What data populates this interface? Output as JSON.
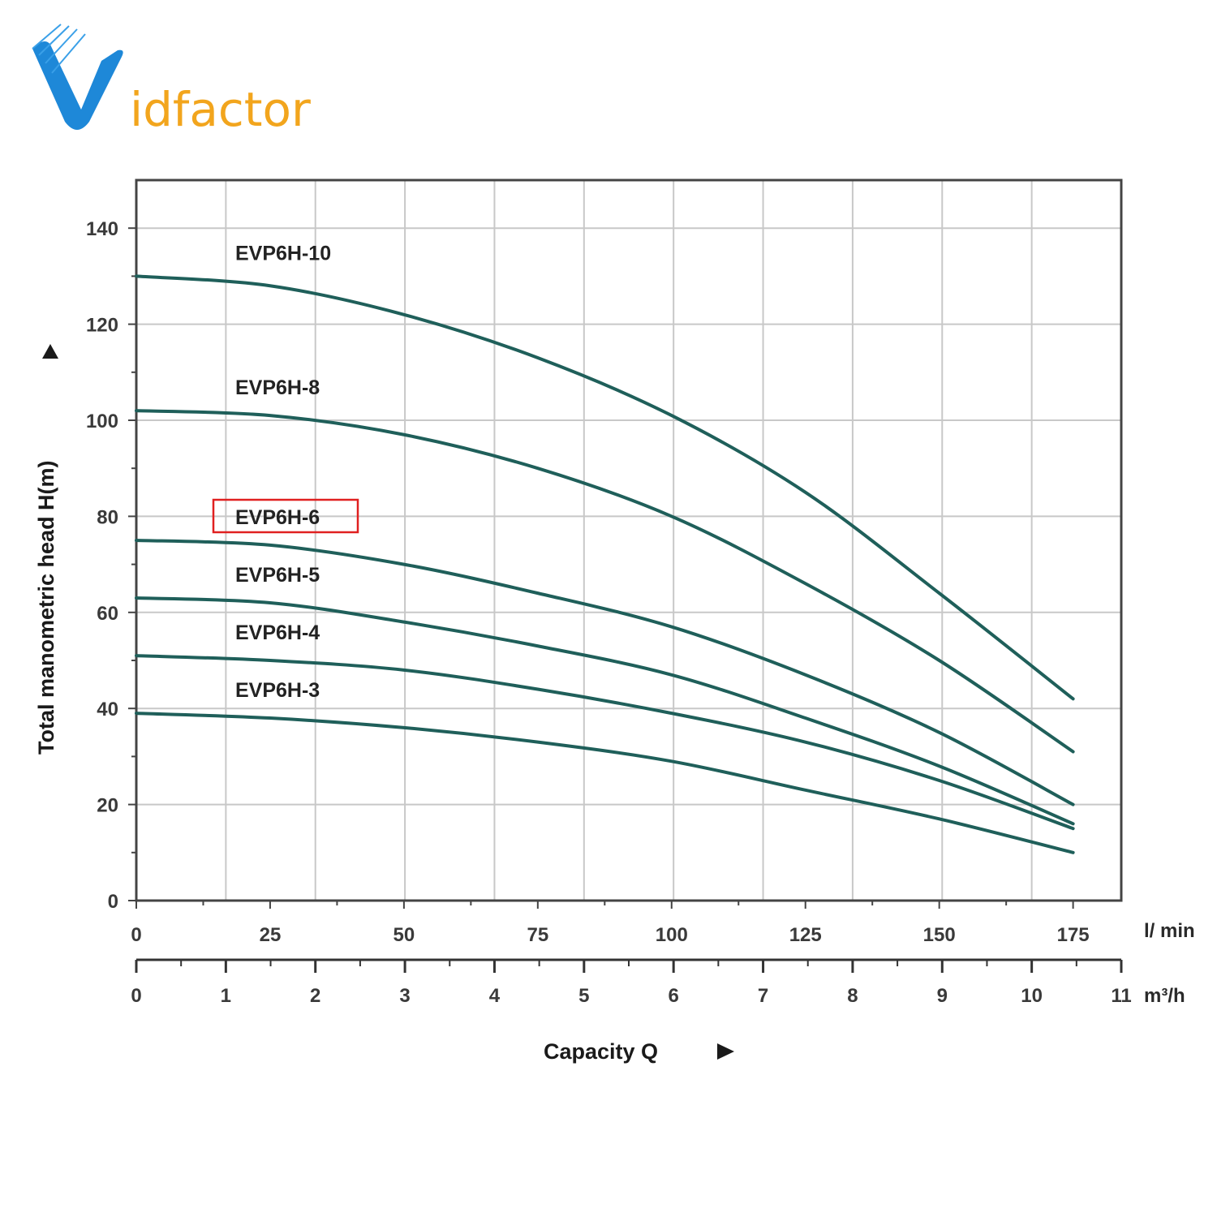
{
  "logo": {
    "text": "idfactor",
    "letter": "V",
    "colors": {
      "blue": "#1e88d8",
      "orange": "#f2a51d"
    }
  },
  "chart_data": {
    "type": "line",
    "ylabel": "Total manometric head H(m)",
    "xlabel": "Capacity Q",
    "ylim": [
      0,
      150
    ],
    "xlim": [
      0,
      184
    ],
    "y_ticks": [
      0,
      20,
      40,
      60,
      80,
      100,
      120,
      140
    ],
    "x_ticks_lmin": [
      0,
      25,
      50,
      75,
      100,
      125,
      150,
      175
    ],
    "x_ticks_m3h": [
      "0",
      "1",
      "2",
      "3",
      "4",
      "5",
      "6",
      "7",
      "8",
      "9",
      "10",
      "11"
    ],
    "x_unit_primary": "l/ min",
    "x_unit_secondary": "m³/h",
    "grid": true,
    "curve_color": "#1f5f5a",
    "highlight_color": "#e02020",
    "highlight_series": "EVP6H-6",
    "series": [
      {
        "name": "EVP6H-10",
        "x": [
          0,
          25,
          50,
          75,
          100,
          125,
          150,
          175
        ],
        "values": [
          130,
          128,
          122,
          113,
          101,
          85,
          64,
          42
        ]
      },
      {
        "name": "EVP6H-8",
        "x": [
          0,
          25,
          50,
          75,
          100,
          125,
          150,
          175
        ],
        "values": [
          102,
          101,
          97,
          90,
          80,
          66,
          50,
          31
        ]
      },
      {
        "name": "EVP6H-6",
        "x": [
          0,
          25,
          50,
          75,
          100,
          125,
          150,
          175
        ],
        "values": [
          75,
          74,
          70,
          64,
          57,
          47,
          35,
          20
        ]
      },
      {
        "name": "EVP6H-5",
        "x": [
          0,
          25,
          50,
          75,
          100,
          125,
          150,
          175
        ],
        "values": [
          63,
          62,
          58,
          53,
          47,
          38,
          28,
          16
        ]
      },
      {
        "name": "EVP6H-4",
        "x": [
          0,
          25,
          50,
          75,
          100,
          125,
          150,
          175
        ],
        "values": [
          51,
          50,
          48,
          44,
          39,
          33,
          25,
          15
        ]
      },
      {
        "name": "EVP6H-3",
        "x": [
          0,
          25,
          50,
          75,
          100,
          125,
          150,
          175
        ],
        "values": [
          39,
          38,
          36,
          33,
          29,
          23,
          17,
          10
        ]
      }
    ]
  }
}
